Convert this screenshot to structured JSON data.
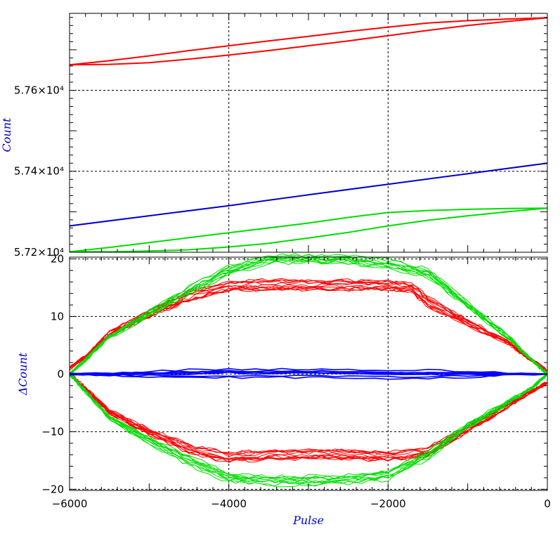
{
  "chart_data": [
    {
      "type": "line",
      "title": "",
      "xlabel": "",
      "ylabel": "Count",
      "xlim": [
        -6000,
        0
      ],
      "ylim": [
        57200,
        57790
      ],
      "x_ticks": [
        -4000,
        -2000
      ],
      "y_ticks": [
        {
          "value": 57600,
          "label": "5.76×10⁴"
        },
        {
          "value": 57400,
          "label": "5.74×10⁴"
        },
        {
          "value": 57200,
          "label": "5.72×10⁴"
        }
      ],
      "grid": true,
      "series": [
        {
          "color": "#ff0000",
          "x": [
            -6000,
            -5500,
            -5000,
            -4500,
            -4000,
            -3500,
            -3000,
            -2500,
            -2000,
            -1500,
            -1000,
            -500,
            0
          ],
          "y": [
            57663,
            57673,
            57685,
            57698,
            57710,
            57722,
            57733,
            57745,
            57756,
            57766,
            57772,
            57776,
            57779
          ]
        },
        {
          "color": "#ff0000",
          "x": [
            0,
            -500,
            -1000,
            -1500,
            -2000,
            -2500,
            -3000,
            -3500,
            -4000,
            -4500,
            -5000,
            -5500,
            -6000
          ],
          "y": [
            57779,
            57770,
            57760,
            57748,
            57735,
            57722,
            57710,
            57698,
            57687,
            57677,
            57668,
            57664,
            57663
          ]
        },
        {
          "color": "#0000cc",
          "x": [
            -6000,
            -5000,
            -4000,
            -3000,
            -2000,
            -1000,
            0
          ],
          "y": [
            57265,
            57290,
            57315,
            57342,
            57368,
            57394,
            57420
          ]
        },
        {
          "color": "#00dd00",
          "x": [
            -6000,
            -5500,
            -5000,
            -4500,
            -4000,
            -3500,
            -3000,
            -2500,
            -2000,
            -1500,
            -1000,
            -500,
            0
          ],
          "y": [
            57201,
            57212,
            57224,
            57236,
            57248,
            57260,
            57272,
            57286,
            57298,
            57303,
            57306,
            57308,
            57309
          ]
        },
        {
          "color": "#00dd00",
          "x": [
            0,
            -500,
            -1000,
            -1500,
            -2000,
            -2500,
            -3000,
            -3500,
            -4000,
            -4500,
            -5000,
            -5500,
            -6000
          ],
          "y": [
            57309,
            57300,
            57290,
            57279,
            57265,
            57249,
            57235,
            57222,
            57213,
            57206,
            57203,
            57201,
            57201
          ]
        }
      ]
    },
    {
      "type": "line",
      "title": "",
      "xlabel": "Pulse",
      "ylabel": "ΔCount",
      "xlim": [
        -6000,
        0
      ],
      "ylim": [
        -20.2,
        20.3
      ],
      "x_ticks": [
        {
          "value": -6000,
          "label": "−6000"
        },
        {
          "value": -4000,
          "label": "−4000"
        },
        {
          "value": -2000,
          "label": "−2000"
        },
        {
          "value": 0,
          "label": "0"
        }
      ],
      "y_ticks": [
        {
          "value": 20,
          "label": "20"
        },
        {
          "value": 10,
          "label": "10"
        },
        {
          "value": 0,
          "label": "0"
        },
        {
          "value": -10,
          "label": "−10"
        },
        {
          "value": -20,
          "label": "−20"
        }
      ],
      "grid": true,
      "bundles": [
        {
          "color": "#ff0000",
          "upper": true,
          "count": 12,
          "x": [
            -6000,
            -5800,
            -5500,
            -5000,
            -4500,
            -4000,
            -3500,
            -3000,
            -2500,
            -2000,
            -1700,
            -1500,
            -1000,
            -500,
            -200,
            0
          ],
          "y": [
            1,
            3,
            7,
            10.5,
            13.5,
            15.3,
            15.5,
            15.5,
            15.5,
            15.5,
            15,
            12.5,
            9,
            5.5,
            2.5,
            0.5
          ]
        },
        {
          "color": "#00dd00",
          "upper": true,
          "count": 10,
          "x": [
            -6000,
            -5800,
            -5500,
            -5000,
            -4500,
            -4000,
            -3500,
            -3000,
            -2500,
            -2000,
            -1500,
            -1000,
            -500,
            -200,
            0
          ],
          "y": [
            0,
            2.5,
            6.5,
            10.5,
            14.5,
            18,
            20,
            20,
            19.8,
            19.2,
            17.5,
            12,
            6.5,
            2.5,
            0
          ]
        },
        {
          "color": "#ff0000",
          "upper": false,
          "count": 12,
          "x": [
            -6000,
            -5800,
            -5500,
            -5000,
            -4500,
            -4000,
            -3500,
            -3000,
            -2500,
            -2000,
            -1500,
            -1000,
            -500,
            -200,
            0
          ],
          "y": [
            0,
            -2.5,
            -6.5,
            -10,
            -13,
            -14.5,
            -14,
            -14,
            -14,
            -14.3,
            -13.5,
            -9.5,
            -5.5,
            -3,
            -1.5
          ]
        },
        {
          "color": "#00dd00",
          "upper": false,
          "count": 10,
          "x": [
            -6000,
            -5800,
            -5500,
            -5000,
            -4500,
            -4000,
            -3500,
            -3000,
            -2500,
            -2000,
            -1500,
            -1000,
            -500,
            -200,
            0
          ],
          "y": [
            0,
            -3,
            -7.5,
            -11.5,
            -15,
            -18,
            -18.5,
            -18.5,
            -18.3,
            -17.5,
            -14,
            -9,
            -5,
            -2.5,
            0
          ]
        },
        {
          "color": "#0000ff",
          "upper": true,
          "count": 8,
          "x": [
            -6000,
            -5000,
            -4000,
            -3000,
            -2000,
            -1000,
            0
          ],
          "y": [
            0,
            0,
            0.2,
            0.2,
            0,
            0,
            0
          ]
        }
      ]
    }
  ]
}
